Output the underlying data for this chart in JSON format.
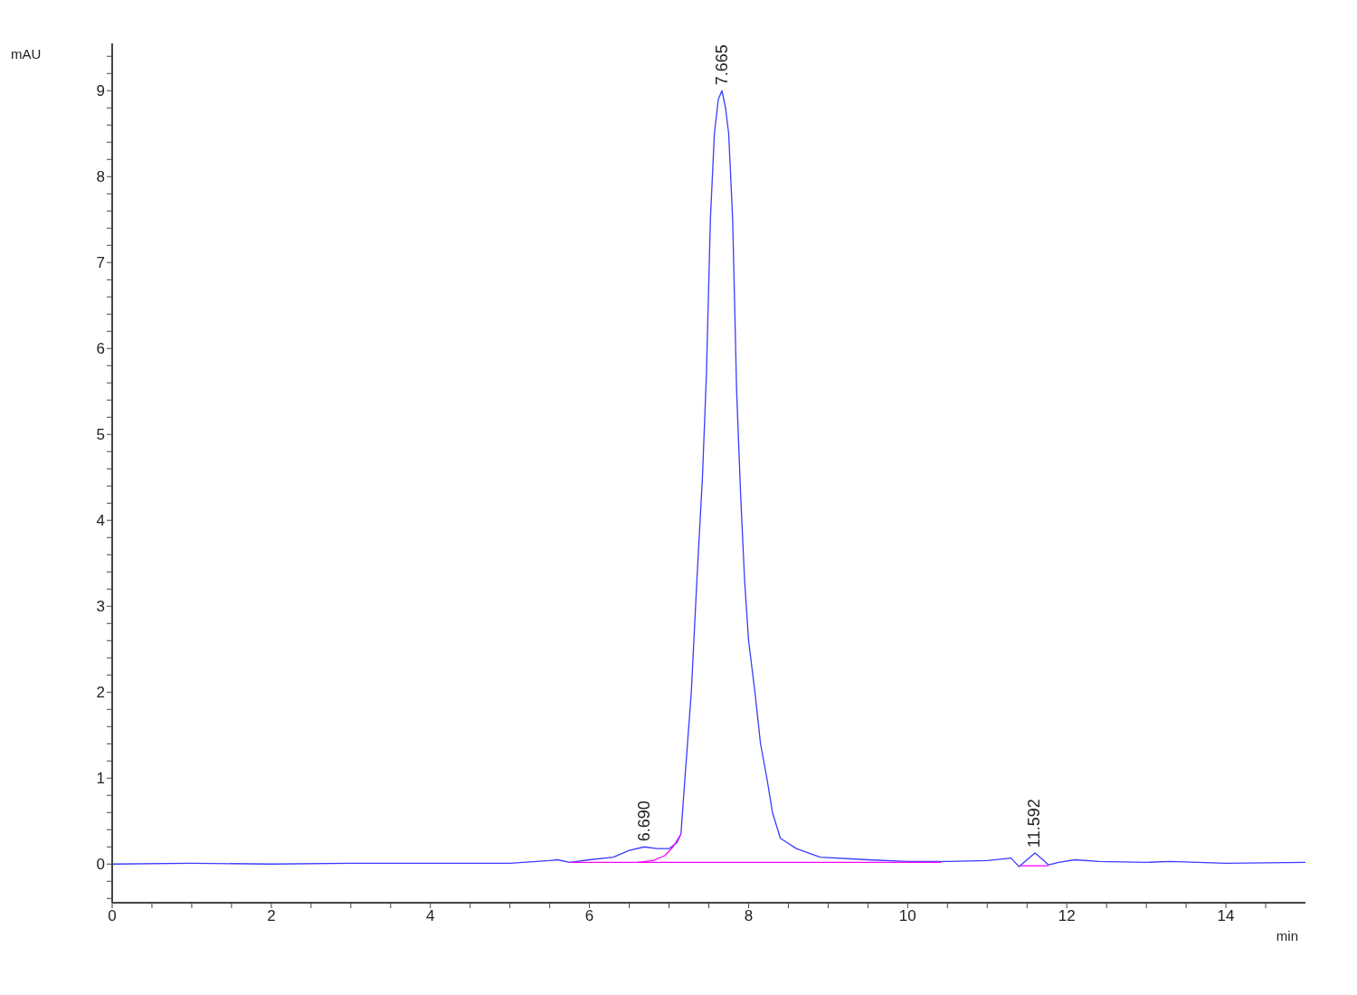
{
  "chart_data": {
    "type": "line",
    "xlabel": "min",
    "ylabel": "mAU",
    "xlim": [
      0,
      15
    ],
    "ylim": [
      -0.45,
      9.55
    ],
    "xticks": [
      0,
      {
        "value": 0.5,
        "label": null
      },
      {
        "value": 1,
        "label": null
      },
      {
        "value": 1.5,
        "label": null
      },
      2,
      {
        "value": 2.5,
        "label": null
      },
      {
        "value": 3,
        "label": null
      },
      {
        "value": 3.5,
        "label": null
      },
      4,
      {
        "value": 4.5,
        "label": null
      },
      {
        "value": 5,
        "label": null
      },
      {
        "value": 5.5,
        "label": null
      },
      6,
      {
        "value": 6.5,
        "label": null
      },
      {
        "value": 7,
        "label": null
      },
      {
        "value": 7.5,
        "label": null
      },
      8,
      {
        "value": 8.5,
        "label": null
      },
      {
        "value": 9,
        "label": null
      },
      {
        "value": 9.5,
        "label": null
      },
      10,
      {
        "value": 10.5,
        "label": null
      },
      {
        "value": 11,
        "label": null
      },
      {
        "value": 11.5,
        "label": null
      },
      12,
      {
        "value": 12.5,
        "label": null
      },
      {
        "value": 13,
        "label": null
      },
      {
        "value": 13.5,
        "label": null
      },
      14,
      {
        "value": 14.5,
        "label": null
      }
    ],
    "yticks": [
      {
        "value": -0.4,
        "label": null
      },
      {
        "value": -0.2,
        "label": null
      },
      0,
      {
        "value": 0.2,
        "label": null
      },
      {
        "value": 0.4,
        "label": null
      },
      {
        "value": 0.6,
        "label": null
      },
      {
        "value": 0.8,
        "label": null
      },
      1,
      {
        "value": 1.2,
        "label": null
      },
      {
        "value": 1.4,
        "label": null
      },
      {
        "value": 1.6,
        "label": null
      },
      {
        "value": 1.8,
        "label": null
      },
      2,
      {
        "value": 2.2,
        "label": null
      },
      {
        "value": 2.4,
        "label": null
      },
      {
        "value": 2.6,
        "label": null
      },
      {
        "value": 2.8,
        "label": null
      },
      3,
      {
        "value": 3.2,
        "label": null
      },
      {
        "value": 3.4,
        "label": null
      },
      {
        "value": 3.6,
        "label": null
      },
      {
        "value": 3.8,
        "label": null
      },
      4,
      {
        "value": 4.2,
        "label": null
      },
      {
        "value": 4.4,
        "label": null
      },
      {
        "value": 4.6,
        "label": null
      },
      {
        "value": 4.8,
        "label": null
      },
      5,
      {
        "value": 5.2,
        "label": null
      },
      {
        "value": 5.4,
        "label": null
      },
      {
        "value": 5.6,
        "label": null
      },
      {
        "value": 5.8,
        "label": null
      },
      6,
      {
        "value": 6.2,
        "label": null
      },
      {
        "value": 6.4,
        "label": null
      },
      {
        "value": 6.6,
        "label": null
      },
      {
        "value": 6.8,
        "label": null
      },
      7,
      {
        "value": 7.2,
        "label": null
      },
      {
        "value": 7.4,
        "label": null
      },
      {
        "value": 7.6,
        "label": null
      },
      {
        "value": 7.8,
        "label": null
      },
      8,
      {
        "value": 8.2,
        "label": null
      },
      {
        "value": 8.4,
        "label": null
      },
      {
        "value": 8.6,
        "label": null
      },
      {
        "value": 8.8,
        "label": null
      },
      9,
      {
        "value": 9.2,
        "label": null
      },
      {
        "value": 9.4,
        "label": null
      }
    ],
    "grid": false,
    "legend": false,
    "marker": "none",
    "line_style": "solid",
    "series": [
      {
        "color": "#3b3bff",
        "x": [
          0,
          1,
          2,
          3,
          4,
          5,
          5.5,
          5.6,
          5.75,
          6.0,
          6.3,
          6.5,
          6.69,
          6.85,
          7.0,
          7.1,
          7.15,
          7.2,
          7.28,
          7.35,
          7.42,
          7.47,
          7.52,
          7.57,
          7.62,
          7.665,
          7.71,
          7.75,
          7.8,
          7.85,
          7.9,
          7.95,
          8.0,
          8.08,
          8.15,
          8.23,
          8.3,
          8.4,
          8.6,
          8.9,
          9.5,
          10,
          10.5,
          11,
          11.3,
          11.4,
          11.5,
          11.6,
          11.7,
          11.77,
          11.9,
          12.1,
          12.4,
          13,
          13.3,
          14,
          15
        ],
        "values": [
          0.0,
          0.01,
          0.0,
          0.01,
          0.01,
          0.01,
          0.04,
          0.05,
          0.02,
          0.05,
          0.08,
          0.16,
          0.2,
          0.18,
          0.18,
          0.25,
          0.35,
          1.0,
          2.0,
          3.3,
          4.5,
          5.7,
          7.5,
          8.5,
          8.9,
          9.0,
          8.8,
          8.5,
          7.5,
          5.5,
          4.3,
          3.3,
          2.6,
          2.0,
          1.4,
          1.0,
          0.6,
          0.3,
          0.18,
          0.08,
          0.05,
          0.03,
          0.03,
          0.04,
          0.07,
          -0.03,
          0.05,
          0.13,
          0.05,
          -0.01,
          0.02,
          0.05,
          0.03,
          0.02,
          0.03,
          0.01,
          0.02
        ]
      },
      {
        "type": "line",
        "color": "#ff00ff",
        "x": [
          5.75,
          10.42
        ],
        "values": [
          0.02,
          0.02
        ]
      },
      {
        "type": "line",
        "color": "#ff00ff",
        "x": [
          6.6,
          6.8,
          6.95,
          7.05,
          7.15
        ],
        "values": [
          0.02,
          0.04,
          0.1,
          0.2,
          0.35
        ]
      },
      {
        "type": "line",
        "color": "#ff00ff",
        "x": [
          11.42,
          11.77
        ],
        "values": [
          -0.02,
          -0.02
        ]
      }
    ],
    "annotations": [
      {
        "text": "6.690",
        "x": 6.69,
        "y": 0.2
      },
      {
        "text": "7.665",
        "x": 7.665,
        "y": 9.0
      },
      {
        "text": "11.592",
        "x": 11.592,
        "y": 0.13
      }
    ]
  }
}
